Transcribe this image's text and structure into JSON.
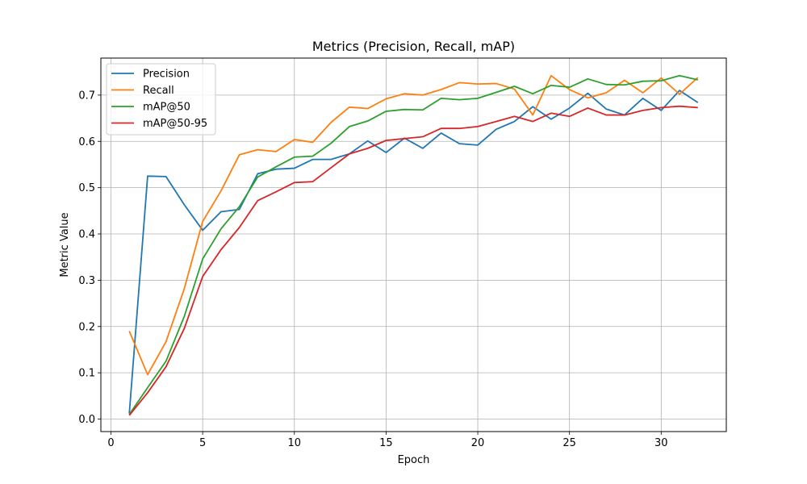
{
  "chart_data": {
    "type": "line",
    "title": "Metrics (Precision, Recall, mAP)",
    "xlabel": "Epoch",
    "ylabel": "Metric Value",
    "xlim": [
      -0.55,
      33.55
    ],
    "ylim": [
      -0.027,
      0.78
    ],
    "xticks": [
      0,
      5,
      10,
      15,
      20,
      25,
      30
    ],
    "yticks": [
      0.0,
      0.1,
      0.2,
      0.3,
      0.4,
      0.5,
      0.6,
      0.7
    ],
    "grid": true,
    "legend_position": "upper left",
    "x": [
      1,
      2,
      3,
      4,
      5,
      6,
      7,
      8,
      9,
      10,
      11,
      12,
      13,
      14,
      15,
      16,
      17,
      18,
      19,
      20,
      21,
      22,
      23,
      24,
      25,
      26,
      27,
      28,
      29,
      30,
      31,
      32
    ],
    "series": [
      {
        "name": "Precision",
        "color": "#1f77b4",
        "values": [
          0.012,
          0.525,
          0.524,
          0.463,
          0.408,
          0.448,
          0.453,
          0.53,
          0.54,
          0.542,
          0.561,
          0.561,
          0.573,
          0.601,
          0.576,
          0.607,
          0.585,
          0.618,
          0.595,
          0.592,
          0.626,
          0.643,
          0.675,
          0.648,
          0.672,
          0.704,
          0.67,
          0.657,
          0.693,
          0.667,
          0.71,
          0.684
        ]
      },
      {
        "name": "Recall",
        "color": "#ff7f0e",
        "values": [
          0.19,
          0.096,
          0.167,
          0.282,
          0.427,
          0.493,
          0.571,
          0.582,
          0.578,
          0.604,
          0.598,
          0.641,
          0.674,
          0.671,
          0.692,
          0.703,
          0.7,
          0.712,
          0.727,
          0.724,
          0.725,
          0.713,
          0.657,
          0.742,
          0.712,
          0.694,
          0.705,
          0.732,
          0.705,
          0.737,
          0.702,
          0.738
        ]
      },
      {
        "name": "mAP@50",
        "color": "#2ca02c",
        "values": [
          0.01,
          0.068,
          0.125,
          0.222,
          0.346,
          0.411,
          0.459,
          0.523,
          0.545,
          0.566,
          0.568,
          0.596,
          0.632,
          0.644,
          0.665,
          0.669,
          0.668,
          0.693,
          0.69,
          0.693,
          0.706,
          0.719,
          0.703,
          0.721,
          0.717,
          0.735,
          0.723,
          0.722,
          0.73,
          0.731,
          0.742,
          0.733
        ]
      },
      {
        "name": "mAP@50-95",
        "color": "#d62728",
        "values": [
          0.008,
          0.057,
          0.113,
          0.196,
          0.308,
          0.366,
          0.414,
          0.472,
          0.491,
          0.511,
          0.513,
          0.543,
          0.573,
          0.585,
          0.602,
          0.606,
          0.61,
          0.628,
          0.628,
          0.632,
          0.643,
          0.654,
          0.643,
          0.661,
          0.654,
          0.672,
          0.657,
          0.657,
          0.667,
          0.673,
          0.676,
          0.673
        ]
      }
    ]
  }
}
